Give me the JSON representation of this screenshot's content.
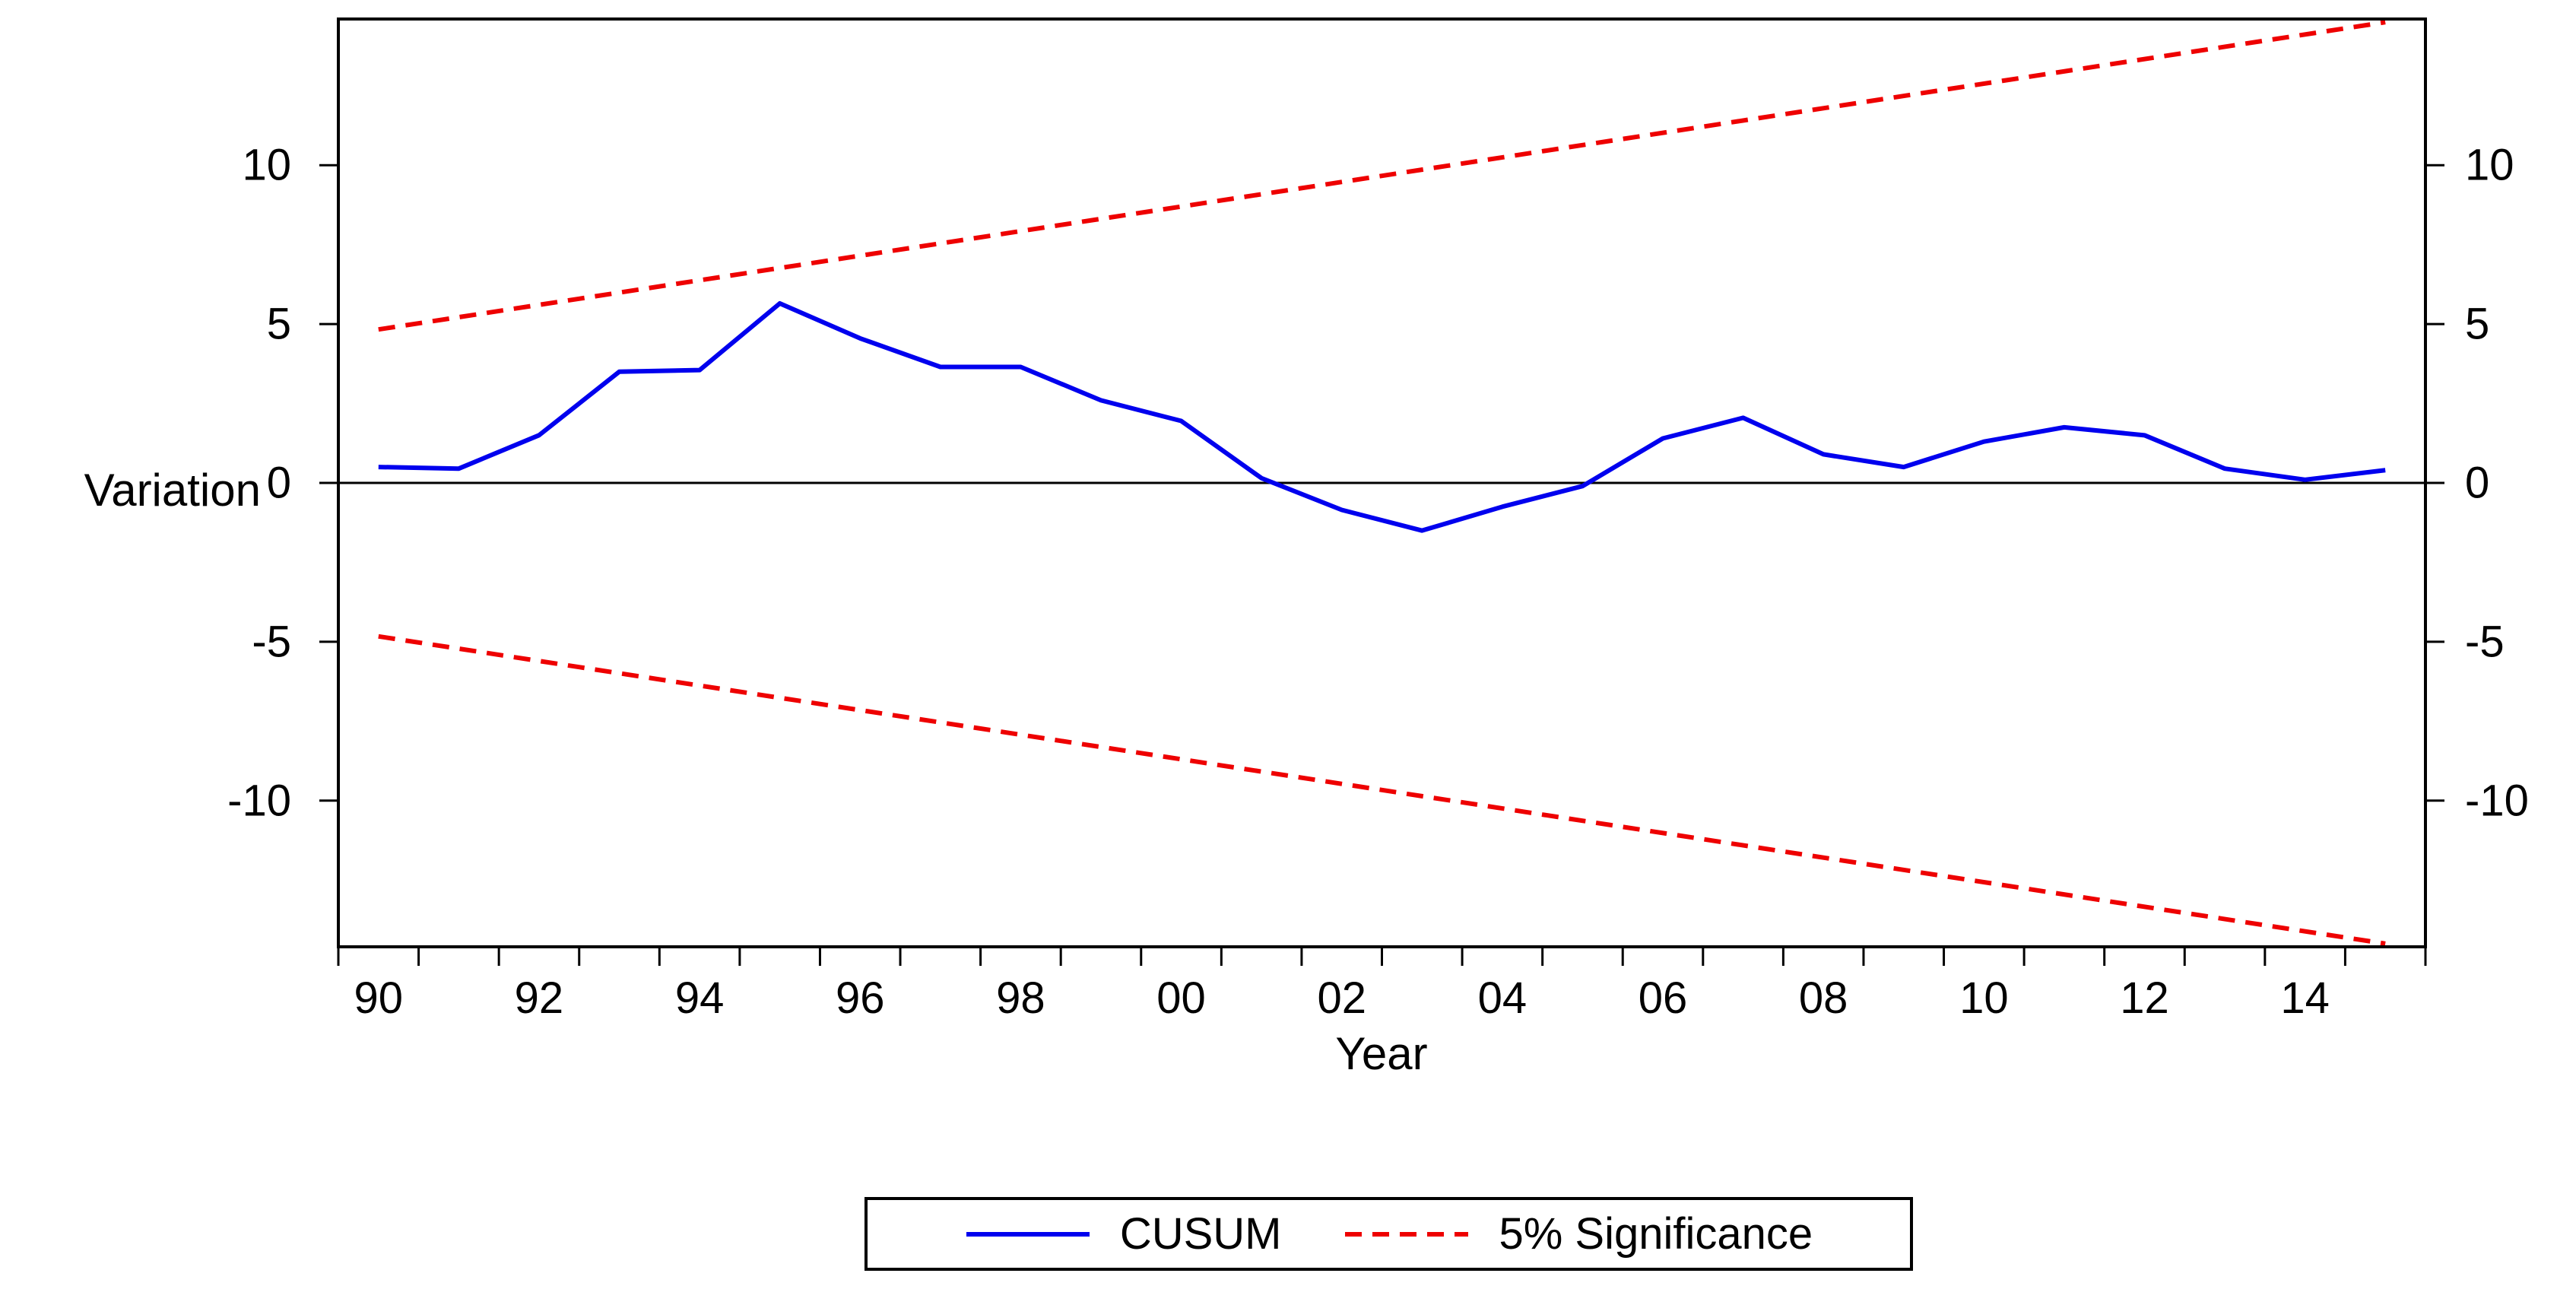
{
  "figure": {
    "background": "#ffffff",
    "xlabel": "Year",
    "ylabel": "Variation"
  },
  "legend": {
    "items": [
      {
        "label": "CUSUM",
        "color": "#0000ee",
        "style": "solid"
      },
      {
        "label": "5% Significance",
        "color": "#ee0000",
        "style": "dashed"
      }
    ]
  },
  "chart_data": {
    "type": "line",
    "xlabel": "Year",
    "ylabel": "Variation",
    "xlim": [
      1989.5,
      2015.5
    ],
    "ylim": [
      -14.6,
      14.6
    ],
    "grid": false,
    "zero_line": true,
    "legend_position": "bottom-center",
    "x_minor_tick_step": 1,
    "x": [
      1990,
      1991,
      1992,
      1993,
      1994,
      1995,
      1996,
      1997,
      1998,
      1999,
      2000,
      2001,
      2002,
      2003,
      2004,
      2005,
      2006,
      2007,
      2008,
      2009,
      2010,
      2011,
      2012,
      2013,
      2014,
      2015
    ],
    "series": [
      {
        "name": "CUSUM",
        "color": "#0000ee",
        "style": "solid",
        "values": [
          0.5,
          0.45,
          1.5,
          3.5,
          3.55,
          5.65,
          4.55,
          3.65,
          3.65,
          2.6,
          1.95,
          0.15,
          -0.85,
          -1.5,
          -0.75,
          -0.1,
          1.4,
          2.05,
          0.9,
          0.5,
          1.3,
          1.75,
          1.5,
          0.45,
          0.1,
          0.4
        ]
      },
      {
        "name": "5% Significance upper",
        "color": "#ee0000",
        "style": "dashed",
        "x": [
          1990,
          2015
        ],
        "values": [
          4.83,
          14.5
        ]
      },
      {
        "name": "5% Significance lower",
        "color": "#ee0000",
        "style": "dashed",
        "x": [
          1990,
          2015
        ],
        "values": [
          -4.83,
          -14.5
        ]
      }
    ],
    "y_ticks": [
      {
        "value": 10,
        "label": "10"
      },
      {
        "value": 5,
        "label": "5"
      },
      {
        "value": 0,
        "label": "0"
      },
      {
        "value": -5,
        "label": "-5"
      },
      {
        "value": -10,
        "label": "-10"
      }
    ],
    "x_tick_labels": [
      {
        "x": 1990,
        "label": "90"
      },
      {
        "x": 1992,
        "label": "92"
      },
      {
        "x": 1994,
        "label": "94"
      },
      {
        "x": 1996,
        "label": "96"
      },
      {
        "x": 1998,
        "label": "98"
      },
      {
        "x": 2000,
        "label": "00"
      },
      {
        "x": 2002,
        "label": "02"
      },
      {
        "x": 2004,
        "label": "04"
      },
      {
        "x": 2006,
        "label": "06"
      },
      {
        "x": 2008,
        "label": "08"
      },
      {
        "x": 2010,
        "label": "10"
      },
      {
        "x": 2012,
        "label": "12"
      },
      {
        "x": 2014,
        "label": "14"
      }
    ]
  }
}
